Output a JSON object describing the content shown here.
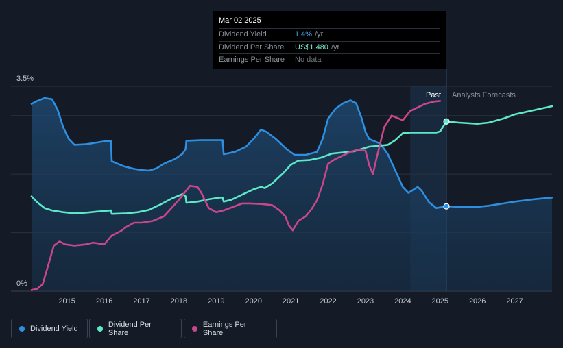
{
  "tooltip": {
    "date": "Mar 02 2025",
    "rows": [
      {
        "label": "Dividend Yield",
        "value": "1.4%",
        "unit": "/yr"
      },
      {
        "label": "Dividend Per Share",
        "value": "US$1.480",
        "unit": "/yr"
      },
      {
        "label": "Earnings Per Share",
        "value": "No data",
        "unit": ""
      }
    ]
  },
  "legend": [
    {
      "label": "Dividend Yield",
      "color": "#2e8fe0"
    },
    {
      "label": "Dividend Per Share",
      "color": "#5ee8c8"
    },
    {
      "label": "Earnings Per Share",
      "color": "#c8478a"
    }
  ],
  "chart_data": {
    "type": "line",
    "y_axis": {
      "top_label": "3.5%",
      "bottom_label": "0%",
      "ylim": [
        0,
        3.5
      ],
      "unit": "%"
    },
    "x_ticks": [
      "2015",
      "2016",
      "2017",
      "2018",
      "2019",
      "2020",
      "2021",
      "2022",
      "2023",
      "2024",
      "2025",
      "2026",
      "2027"
    ],
    "xlim": [
      2014.05,
      2028.0
    ],
    "past_start": 2024.2,
    "forecast_start": 2025.17,
    "past_label": "Past",
    "forecast_label": "Analysts Forecasts",
    "colors": {
      "dividend_yield": "#2e8fe0",
      "dividend_per_share": "#5ee8c8",
      "earnings_per_share": "#c8478a",
      "grid": "#2a3140",
      "axis_text": "#c4c9d1",
      "past_band": "#1d3550",
      "forecast_text": "#8c939e"
    },
    "series": [
      {
        "name": "Dividend Yield",
        "key": "dividend_yield",
        "area": true,
        "points": [
          [
            2014.05,
            3.2
          ],
          [
            2014.2,
            3.25
          ],
          [
            2014.4,
            3.3
          ],
          [
            2014.6,
            3.28
          ],
          [
            2014.75,
            3.1
          ],
          [
            2014.9,
            2.8
          ],
          [
            2015.05,
            2.6
          ],
          [
            2015.2,
            2.5
          ],
          [
            2015.5,
            2.51
          ],
          [
            2015.8,
            2.54
          ],
          [
            2016.0,
            2.56
          ],
          [
            2016.18,
            2.57
          ],
          [
            2016.2,
            2.22
          ],
          [
            2016.5,
            2.14
          ],
          [
            2016.8,
            2.09
          ],
          [
            2017.0,
            2.07
          ],
          [
            2017.2,
            2.06
          ],
          [
            2017.4,
            2.1
          ],
          [
            2017.6,
            2.18
          ],
          [
            2017.9,
            2.26
          ],
          [
            2018.1,
            2.35
          ],
          [
            2018.18,
            2.43
          ],
          [
            2018.2,
            2.57
          ],
          [
            2018.6,
            2.58
          ],
          [
            2019.0,
            2.58
          ],
          [
            2019.17,
            2.58
          ],
          [
            2019.2,
            2.34
          ],
          [
            2019.5,
            2.38
          ],
          [
            2019.8,
            2.47
          ],
          [
            2020.0,
            2.6
          ],
          [
            2020.2,
            2.76
          ],
          [
            2020.35,
            2.72
          ],
          [
            2020.6,
            2.6
          ],
          [
            2020.9,
            2.42
          ],
          [
            2021.1,
            2.33
          ],
          [
            2021.4,
            2.33
          ],
          [
            2021.7,
            2.38
          ],
          [
            2021.85,
            2.6
          ],
          [
            2022.0,
            2.95
          ],
          [
            2022.2,
            3.12
          ],
          [
            2022.4,
            3.21
          ],
          [
            2022.6,
            3.26
          ],
          [
            2022.75,
            3.21
          ],
          [
            2022.9,
            2.95
          ],
          [
            2023.0,
            2.72
          ],
          [
            2023.1,
            2.6
          ],
          [
            2023.4,
            2.52
          ],
          [
            2023.6,
            2.34
          ],
          [
            2023.8,
            2.06
          ],
          [
            2024.0,
            1.78
          ],
          [
            2024.15,
            1.68
          ],
          [
            2024.3,
            1.74
          ],
          [
            2024.4,
            1.78
          ],
          [
            2024.5,
            1.72
          ],
          [
            2024.7,
            1.52
          ],
          [
            2024.9,
            1.42
          ],
          [
            2025.17,
            1.45
          ],
          [
            2025.5,
            1.44
          ],
          [
            2026.0,
            1.44
          ],
          [
            2026.3,
            1.46
          ],
          [
            2026.7,
            1.5
          ],
          [
            2027.0,
            1.53
          ],
          [
            2027.5,
            1.57
          ],
          [
            2028.0,
            1.6
          ]
        ]
      },
      {
        "name": "Dividend Per Share",
        "key": "dividend_per_share",
        "area": false,
        "points": [
          [
            2014.05,
            1.62
          ],
          [
            2014.2,
            1.52
          ],
          [
            2014.4,
            1.42
          ],
          [
            2014.6,
            1.38
          ],
          [
            2014.9,
            1.35
          ],
          [
            2015.2,
            1.33
          ],
          [
            2015.5,
            1.34
          ],
          [
            2015.8,
            1.36
          ],
          [
            2016.0,
            1.37
          ],
          [
            2016.18,
            1.38
          ],
          [
            2016.2,
            1.32
          ],
          [
            2016.6,
            1.33
          ],
          [
            2016.9,
            1.35
          ],
          [
            2017.2,
            1.39
          ],
          [
            2017.5,
            1.48
          ],
          [
            2017.8,
            1.58
          ],
          [
            2018.1,
            1.66
          ],
          [
            2018.18,
            1.62
          ],
          [
            2018.2,
            1.51
          ],
          [
            2018.5,
            1.53
          ],
          [
            2018.8,
            1.57
          ],
          [
            2019.1,
            1.6
          ],
          [
            2019.17,
            1.6
          ],
          [
            2019.2,
            1.53
          ],
          [
            2019.4,
            1.56
          ],
          [
            2019.7,
            1.65
          ],
          [
            2020.0,
            1.74
          ],
          [
            2020.2,
            1.78
          ],
          [
            2020.3,
            1.76
          ],
          [
            2020.5,
            1.84
          ],
          [
            2020.8,
            2.02
          ],
          [
            2021.0,
            2.16
          ],
          [
            2021.2,
            2.23
          ],
          [
            2021.5,
            2.24
          ],
          [
            2021.8,
            2.28
          ],
          [
            2022.1,
            2.35
          ],
          [
            2022.4,
            2.37
          ],
          [
            2022.7,
            2.39
          ],
          [
            2022.9,
            2.43
          ],
          [
            2023.1,
            2.47
          ],
          [
            2023.3,
            2.48
          ],
          [
            2023.6,
            2.5
          ],
          [
            2023.8,
            2.58
          ],
          [
            2024.0,
            2.7
          ],
          [
            2024.2,
            2.71
          ],
          [
            2024.5,
            2.71
          ],
          [
            2024.9,
            2.71
          ],
          [
            2025.0,
            2.73
          ],
          [
            2025.17,
            2.9
          ],
          [
            2025.5,
            2.88
          ],
          [
            2026.0,
            2.86
          ],
          [
            2026.3,
            2.88
          ],
          [
            2026.7,
            2.95
          ],
          [
            2027.0,
            3.02
          ],
          [
            2027.5,
            3.09
          ],
          [
            2028.0,
            3.16
          ]
        ]
      },
      {
        "name": "Earnings Per Share",
        "key": "earnings_per_share",
        "area": false,
        "points": [
          [
            2014.05,
            0.02
          ],
          [
            2014.2,
            0.04
          ],
          [
            2014.35,
            0.12
          ],
          [
            2014.5,
            0.45
          ],
          [
            2014.65,
            0.78
          ],
          [
            2014.8,
            0.85
          ],
          [
            2014.95,
            0.8
          ],
          [
            2015.2,
            0.78
          ],
          [
            2015.5,
            0.8
          ],
          [
            2015.7,
            0.83
          ],
          [
            2016.0,
            0.8
          ],
          [
            2016.2,
            0.95
          ],
          [
            2016.45,
            1.03
          ],
          [
            2016.6,
            1.1
          ],
          [
            2016.8,
            1.17
          ],
          [
            2017.0,
            1.17
          ],
          [
            2017.3,
            1.2
          ],
          [
            2017.6,
            1.28
          ],
          [
            2017.8,
            1.42
          ],
          [
            2018.0,
            1.56
          ],
          [
            2018.2,
            1.72
          ],
          [
            2018.3,
            1.8
          ],
          [
            2018.5,
            1.78
          ],
          [
            2018.6,
            1.68
          ],
          [
            2018.8,
            1.42
          ],
          [
            2019.0,
            1.35
          ],
          [
            2019.2,
            1.38
          ],
          [
            2019.45,
            1.44
          ],
          [
            2019.7,
            1.5
          ],
          [
            2019.9,
            1.5
          ],
          [
            2020.2,
            1.49
          ],
          [
            2020.5,
            1.47
          ],
          [
            2020.7,
            1.38
          ],
          [
            2020.85,
            1.28
          ],
          [
            2020.95,
            1.12
          ],
          [
            2021.05,
            1.04
          ],
          [
            2021.2,
            1.2
          ],
          [
            2021.4,
            1.28
          ],
          [
            2021.55,
            1.4
          ],
          [
            2021.7,
            1.55
          ],
          [
            2021.85,
            1.82
          ],
          [
            2022.0,
            2.18
          ],
          [
            2022.2,
            2.26
          ],
          [
            2022.4,
            2.32
          ],
          [
            2022.6,
            2.38
          ],
          [
            2022.8,
            2.42
          ],
          [
            2023.0,
            2.4
          ],
          [
            2023.1,
            2.15
          ],
          [
            2023.2,
            2.0
          ],
          [
            2023.3,
            2.28
          ],
          [
            2023.5,
            2.8
          ],
          [
            2023.7,
            3.0
          ],
          [
            2023.85,
            2.96
          ],
          [
            2024.0,
            2.92
          ],
          [
            2024.2,
            3.08
          ],
          [
            2024.4,
            3.14
          ],
          [
            2024.6,
            3.2
          ],
          [
            2024.85,
            3.24
          ],
          [
            2025.0,
            3.25
          ]
        ]
      }
    ]
  }
}
